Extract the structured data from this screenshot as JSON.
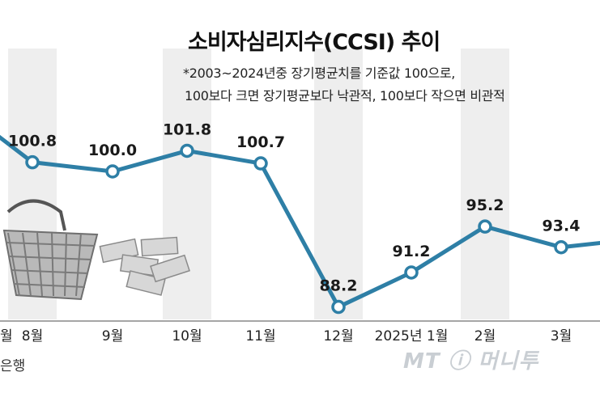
{
  "chart_data": {
    "type": "line",
    "title": "소비자심리지수(CCSI) 추이",
    "note_lines": [
      "*2003~2024년중 장기평균치를 기준값 100으로,",
      "100보다 크면 장기평균보다 낙관적, 100보다 작으면 비관적"
    ],
    "categories": [
      "",
      "8월",
      "9월",
      "10월",
      "11월",
      "12월",
      "2025년 1월",
      "2월",
      "3월",
      ""
    ],
    "values": [
      103.5,
      100.8,
      100.0,
      101.8,
      100.7,
      88.2,
      91.2,
      95.2,
      93.4,
      93.8
    ],
    "data_labels": [
      "",
      "100.8",
      "100.0",
      "101.8",
      "100.7",
      "88.2",
      "91.2",
      "95.2",
      "93.4",
      ""
    ],
    "ylim": [
      85,
      110
    ],
    "source": "은행",
    "watermark": "MT ⓘ 머니투",
    "colors": {
      "line": "#2e7fa6",
      "marker_fill": "#ffffff",
      "band": "#eeeeee",
      "axis": "#888888"
    }
  }
}
